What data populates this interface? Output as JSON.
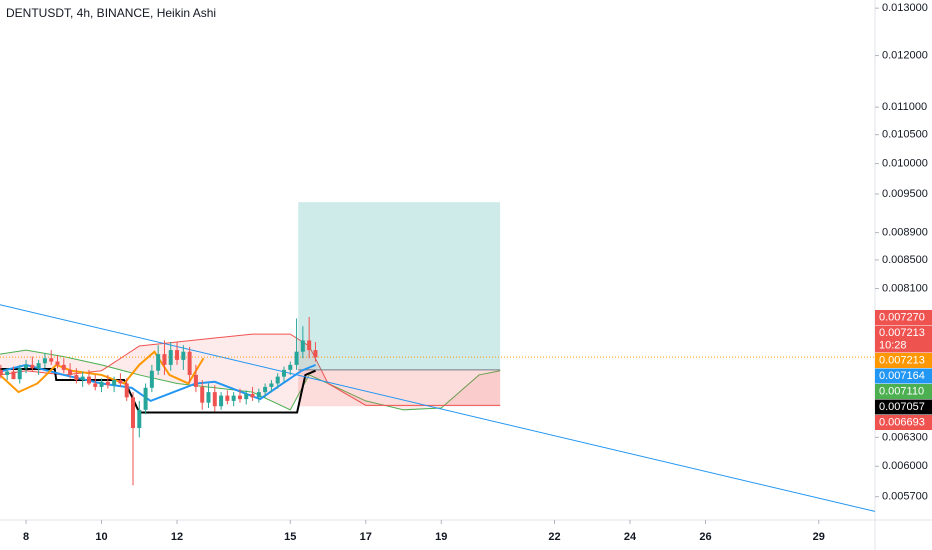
{
  "chart_data": {
    "type": "candlestick",
    "title": "DENTUSDT, 4h, BINANCE, Heikin Ashi",
    "log_scale": true,
    "xlim": [
      7.31,
      30.49
    ],
    "xticks": [
      8,
      10,
      12,
      15,
      17,
      19,
      22,
      24,
      26,
      29
    ],
    "ylim": [
      0.00548,
      0.01318
    ],
    "yticks": [
      {
        "value": 0.013,
        "label": "0.013000"
      },
      {
        "value": 0.012,
        "label": "0.012000"
      },
      {
        "value": 0.011,
        "label": "0.011000"
      },
      {
        "value": 0.0105,
        "label": "0.010500"
      },
      {
        "value": 0.01,
        "label": "0.010000"
      },
      {
        "value": 0.0095,
        "label": "0.009500"
      },
      {
        "value": 0.0089,
        "label": "0.008900"
      },
      {
        "value": 0.0085,
        "label": "0.008500"
      },
      {
        "value": 0.0081,
        "label": "0.008100"
      },
      {
        "value": 0.0063,
        "label": "0.006300"
      },
      {
        "value": 0.006,
        "label": "0.006000"
      },
      {
        "value": 0.0057,
        "label": "0.005700"
      }
    ],
    "up_color": "#26a69a",
    "down_color": "#ef5350",
    "x": [
      7.333,
      7.5,
      7.667,
      7.833,
      8,
      8.167,
      8.333,
      8.5,
      8.667,
      8.833,
      9,
      9.167,
      9.333,
      9.5,
      9.667,
      9.833,
      10,
      10.167,
      10.333,
      10.5,
      10.667,
      10.833,
      11,
      11.167,
      11.333,
      11.5,
      11.667,
      11.833,
      12,
      12.167,
      12.333,
      12.5,
      12.667,
      12.833,
      13,
      13.167,
      13.333,
      13.5,
      13.667,
      13.833,
      14,
      14.167,
      14.333,
      14.5,
      14.667,
      14.833,
      15,
      15.167,
      15.333,
      15.5,
      15.667
    ],
    "open": [
      0.00706,
      0.007,
      0.00704,
      0.00695,
      0.00708,
      0.00712,
      0.00708,
      0.00714,
      0.0072,
      0.00716,
      0.00712,
      0.00706,
      0.007,
      0.00694,
      0.00698,
      0.0069,
      0.00686,
      0.00692,
      0.00688,
      0.00694,
      0.0069,
      0.00674,
      0.0064,
      0.0066,
      0.00685,
      0.00705,
      0.00725,
      0.00712,
      0.0073,
      0.00718,
      0.00728,
      0.007,
      0.00686,
      0.00668,
      0.0068,
      0.00664,
      0.00676,
      0.0067,
      0.00676,
      0.00672,
      0.00678,
      0.00674,
      0.0068,
      0.00686,
      0.0069,
      0.00698,
      0.00706,
      0.00712,
      0.00728,
      0.00742,
      0.0073
    ],
    "high": [
      0.00712,
      0.00708,
      0.0071,
      0.00712,
      0.00718,
      0.00722,
      0.00718,
      0.00726,
      0.0073,
      0.00724,
      0.0072,
      0.00714,
      0.00708,
      0.00704,
      0.00706,
      0.007,
      0.00696,
      0.007,
      0.00698,
      0.00702,
      0.00696,
      0.0068,
      0.0067,
      0.0069,
      0.00712,
      0.00736,
      0.00742,
      0.0074,
      0.0074,
      0.00736,
      0.00734,
      0.00712,
      0.00694,
      0.0069,
      0.00688,
      0.0068,
      0.00682,
      0.0068,
      0.00684,
      0.00682,
      0.00686,
      0.00684,
      0.0069,
      0.00694,
      0.00702,
      0.0071,
      0.00716,
      0.0077,
      0.0076,
      0.00772,
      0.0074
    ],
    "low": [
      0.00696,
      0.00694,
      0.00698,
      0.0069,
      0.00702,
      0.00704,
      0.007,
      0.00708,
      0.00712,
      0.00708,
      0.00702,
      0.00696,
      0.0069,
      0.00686,
      0.00688,
      0.00682,
      0.0068,
      0.00684,
      0.0068,
      0.00686,
      0.0067,
      0.00581,
      0.0063,
      0.00655,
      0.0068,
      0.007,
      0.007,
      0.00705,
      0.00712,
      0.00706,
      0.0069,
      0.0068,
      0.0066,
      0.00662,
      0.00658,
      0.0066,
      0.00666,
      0.00664,
      0.00668,
      0.00666,
      0.0067,
      0.00668,
      0.00674,
      0.0068,
      0.00684,
      0.00692,
      0.007,
      0.00706,
      0.0072,
      0.0072,
      0.00716
    ],
    "close": [
      0.007,
      0.00704,
      0.00695,
      0.00708,
      0.00712,
      0.00708,
      0.00714,
      0.0072,
      0.00716,
      0.00712,
      0.00706,
      0.007,
      0.00694,
      0.00698,
      0.0069,
      0.00686,
      0.00692,
      0.00688,
      0.00694,
      0.0069,
      0.00674,
      0.0064,
      0.0066,
      0.00685,
      0.00705,
      0.00725,
      0.00712,
      0.0073,
      0.00718,
      0.00728,
      0.007,
      0.00686,
      0.00668,
      0.0068,
      0.00664,
      0.00676,
      0.0067,
      0.00676,
      0.00672,
      0.00678,
      0.00674,
      0.0068,
      0.00686,
      0.0069,
      0.00698,
      0.00706,
      0.00712,
      0.00728,
      0.00742,
      0.0073,
      0.00721
    ],
    "cloud": {
      "x": [
        7.31,
        8,
        9,
        10,
        11,
        12,
        13,
        14,
        15,
        15.5,
        16,
        17,
        18,
        19,
        20,
        20.56
      ],
      "span_a": [
        0.00725,
        0.0073,
        0.00722,
        0.00712,
        0.007,
        0.0069,
        0.00685,
        0.0068,
        0.0066,
        0.007,
        0.0069,
        0.0067,
        0.0066,
        0.00662,
        0.007,
        0.00705
      ],
      "span_b": [
        0.007,
        0.00705,
        0.007,
        0.00705,
        0.00735,
        0.0074,
        0.00745,
        0.0075,
        0.0075,
        0.00735,
        0.0069,
        0.00665,
        0.00665,
        0.00665,
        0.00665,
        0.00665
      ],
      "color_a": "#4caf50",
      "color_b": "#ef5350"
    },
    "lines": [
      {
        "color": "#000000",
        "x": [
          7.31,
          8.76,
          8.8,
          10.6,
          11,
          15.18,
          15.4,
          15.67
        ],
        "values": [
          0.00707,
          0.00707,
          0.00694,
          0.00694,
          0.00657,
          0.00657,
          0.007,
          0.00705
        ]
      },
      {
        "color": "#2196f3",
        "x": [
          7.31,
          8,
          9,
          10,
          10.8,
          11.3,
          12.5,
          13,
          14.2,
          14.8,
          15.3,
          15.67
        ],
        "values": [
          0.00704,
          0.00712,
          0.007,
          0.0069,
          0.00685,
          0.0067,
          0.0069,
          0.00692,
          0.00672,
          0.0069,
          0.00705,
          0.00712
        ]
      },
      {
        "color": "#ff9800",
        "x": [
          7.31,
          7.8,
          8.3,
          8.8,
          9.2,
          10,
          10.6,
          11,
          11.4,
          11.8,
          12.3,
          12.7
        ],
        "values": [
          0.007,
          0.0068,
          0.0069,
          0.00712,
          0.00705,
          0.007,
          0.0069,
          0.00712,
          0.00728,
          0.007,
          0.0069,
          0.0072
        ]
      },
      {
        "color": "#2196f3",
        "x": [
          7.31,
          30.49
        ],
        "values": [
          0.00788,
          0.00556
        ]
      }
    ],
    "position": {
      "x": [
        15.21,
        20.56
      ],
      "target": 0.00937,
      "entry": 0.00706,
      "stop": 0.00664
    },
    "last_price": 0.007213,
    "price_tags": [
      {
        "value": 0.00727,
        "label": "0.007270",
        "color": "#ef5350"
      },
      {
        "value": 0.007213,
        "label": "0.007213",
        "color": "#ef5350",
        "sub": "10:28"
      },
      {
        "value": 0.007213,
        "label": "0.007213",
        "color": "#ff9800"
      },
      {
        "value": 0.007164,
        "label": "0.007164",
        "color": "#2196f3"
      },
      {
        "value": 0.00711,
        "label": "0.007110",
        "color": "#4caf50"
      },
      {
        "value": 0.007057,
        "label": "0.007057",
        "color": "#000000"
      },
      {
        "value": 0.006693,
        "label": "0.006693",
        "color": "#ef5350"
      }
    ]
  }
}
